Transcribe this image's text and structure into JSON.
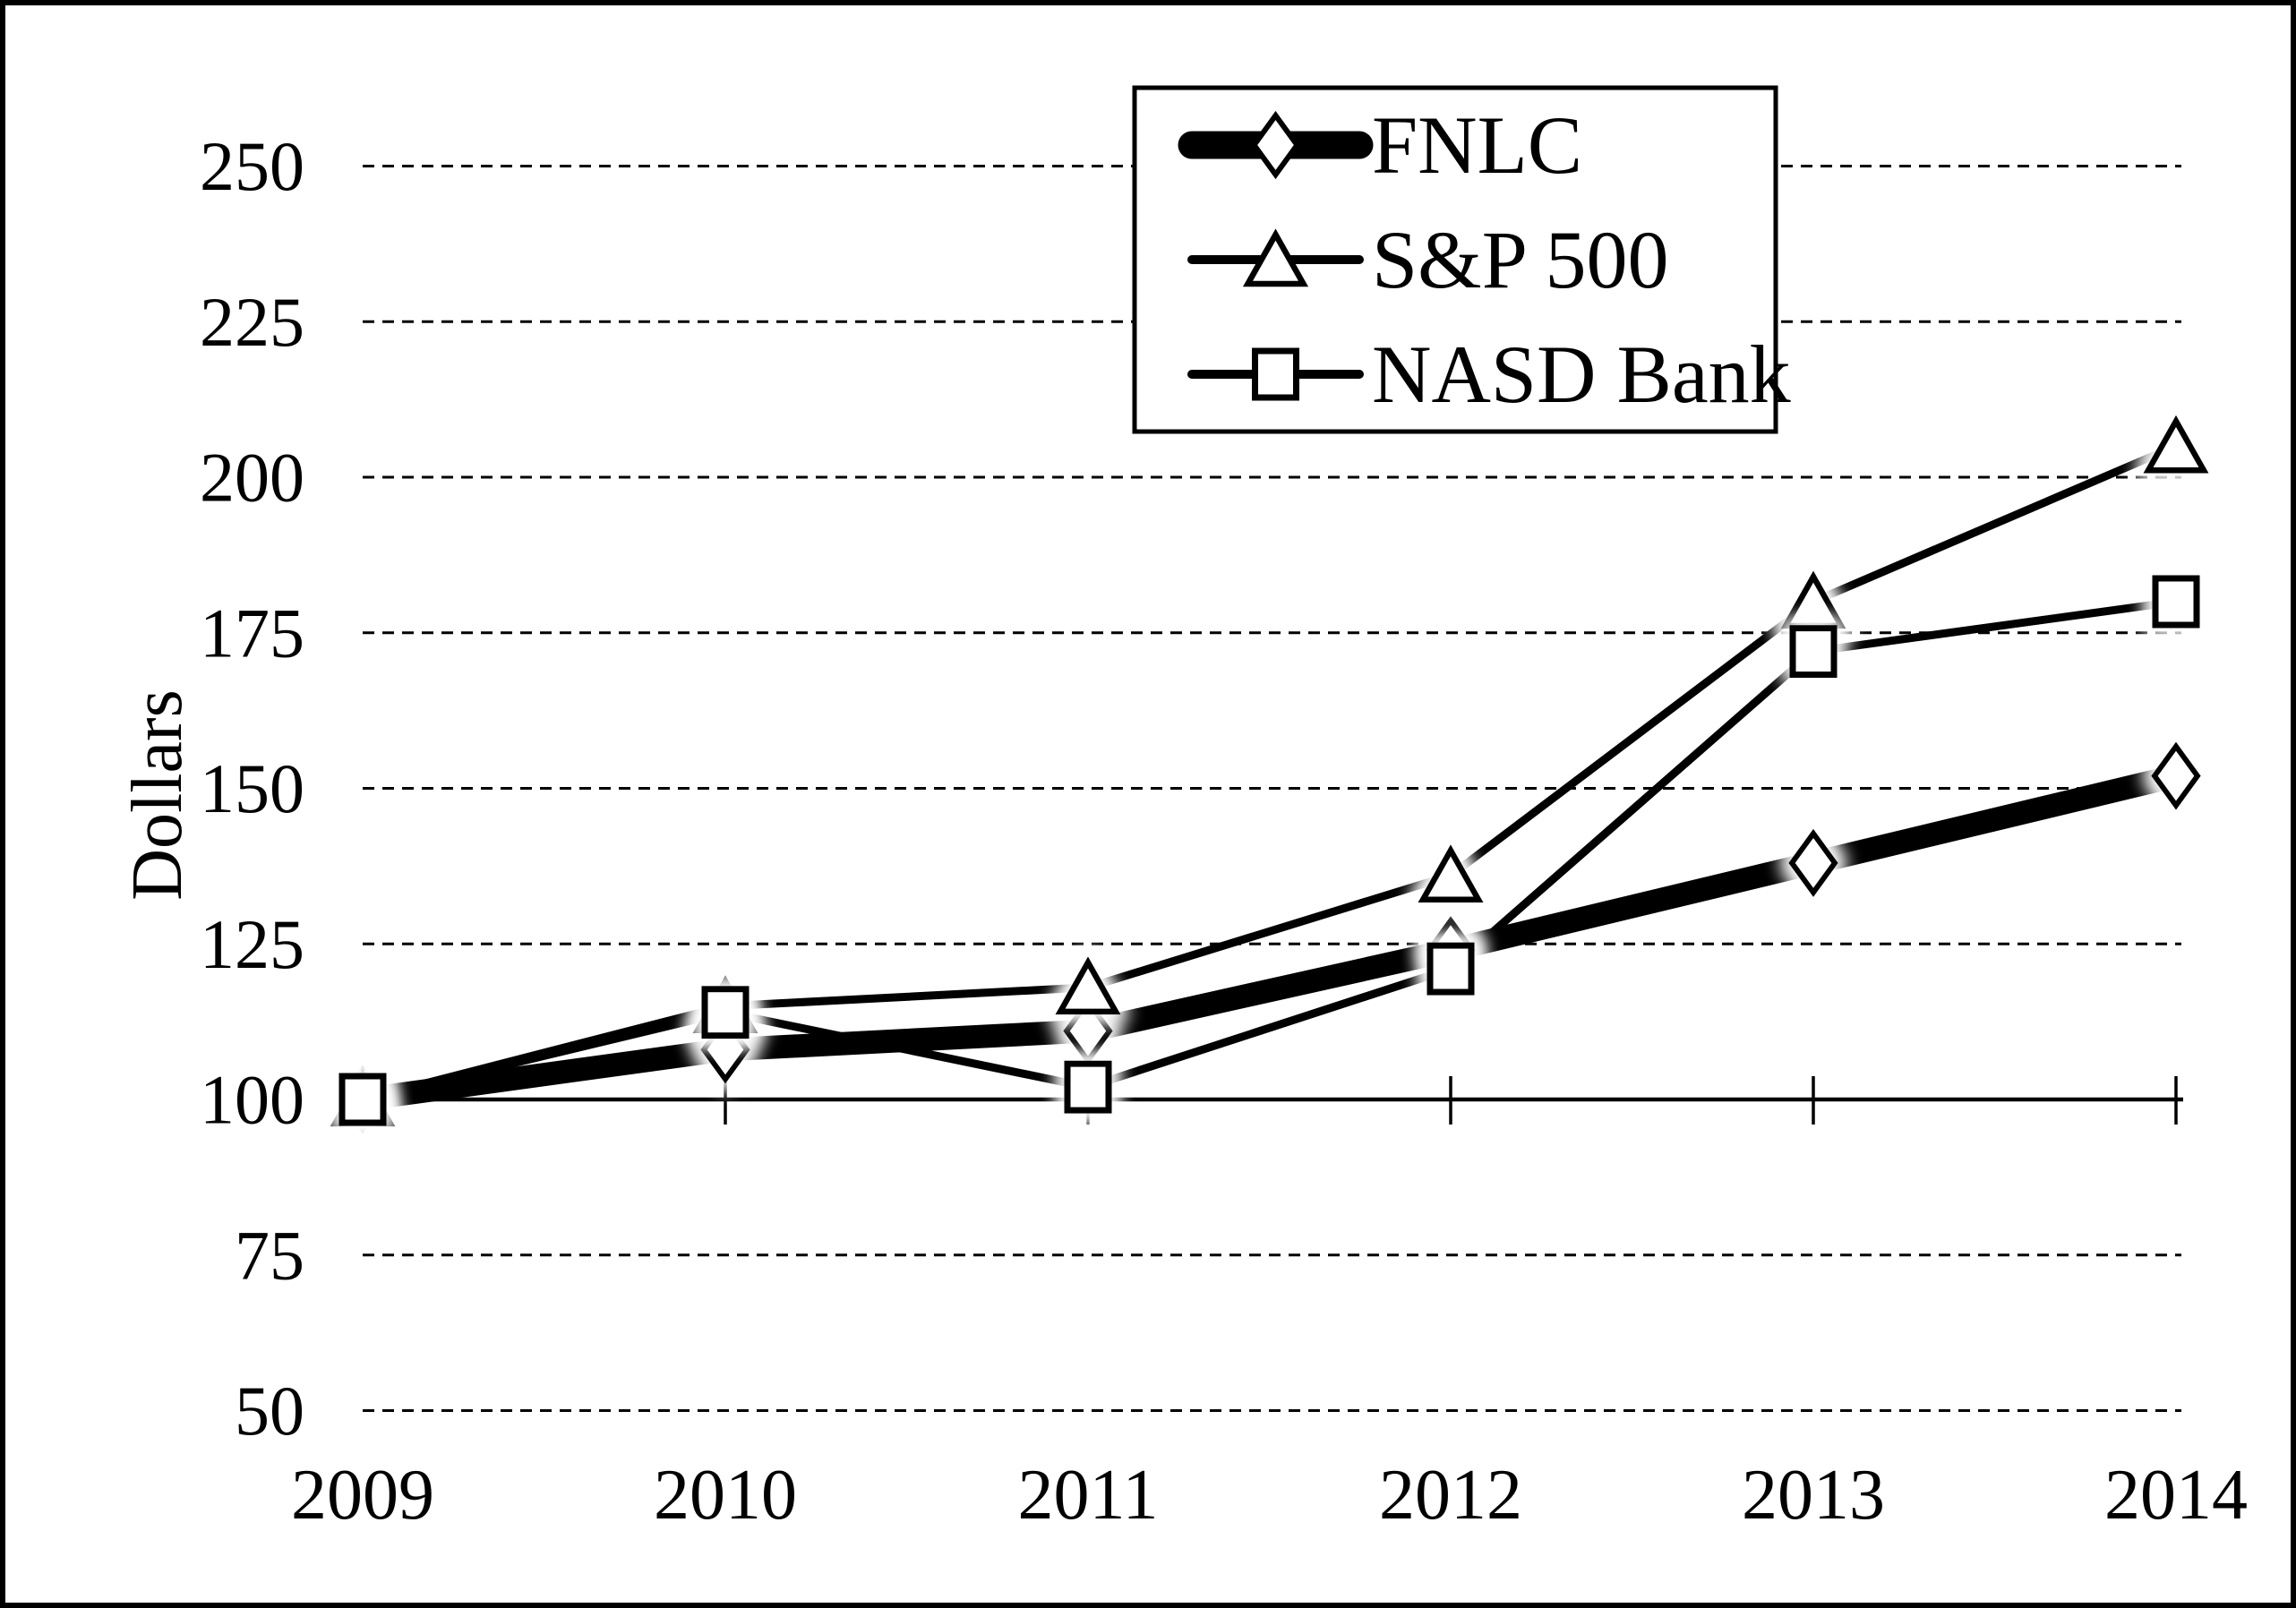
{
  "chart_data": {
    "type": "line",
    "title": "",
    "xlabel": "",
    "ylabel": "Dollars",
    "categories": [
      "2009",
      "2010",
      "2011",
      "2012",
      "2013",
      "2014"
    ],
    "series": [
      {
        "name": "FNLC",
        "marker": "diamond",
        "line": "thick",
        "values": [
          100,
          108,
          111,
          124,
          138,
          152
        ]
      },
      {
        "name": "S&P 500",
        "marker": "triangle",
        "line": "thin",
        "values": [
          100,
          115,
          118,
          136,
          180,
          205
        ]
      },
      {
        "name": "NASD Bank",
        "marker": "square",
        "line": "thin",
        "values": [
          100,
          114,
          102,
          121,
          172,
          180
        ]
      }
    ],
    "ylim": [
      50,
      250
    ],
    "y_tick_step": 25,
    "y_ticks": [
      250,
      225,
      200,
      175,
      150,
      125,
      100,
      75,
      50
    ],
    "axis_cross_value": 100,
    "grid": "horizontal-dashed",
    "legend_position": "top-center",
    "colors": {
      "ink": "#000000",
      "paper": "#ffffff"
    }
  }
}
